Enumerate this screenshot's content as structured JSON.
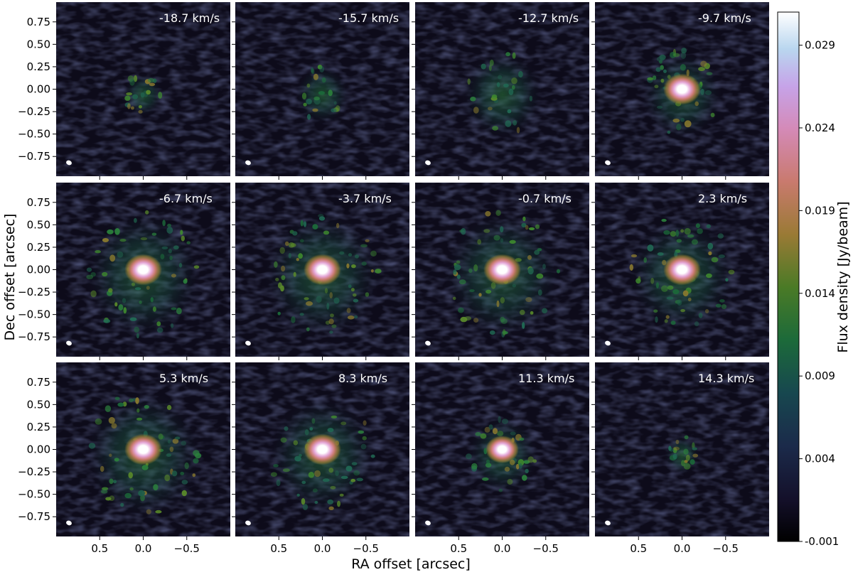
{
  "chart_data": {
    "type": "heatmap",
    "description_grid": "3x4 channel maps",
    "xlabel": "RA offset [arcsec]",
    "ylabel": "Dec offset [arcsec]",
    "colorbar_label": "Flux density [Jy/beam]",
    "x_ticks": [
      "0.5",
      "0.0",
      "−0.5"
    ],
    "y_ticks": [
      "0.75",
      "0.50",
      "0.25",
      "0.00",
      "−0.25",
      "−0.50",
      "−0.75"
    ],
    "colorbar_ticks": [
      "0.029",
      "0.024",
      "0.019",
      "0.014",
      "0.009",
      "0.004",
      "-0.001"
    ],
    "colorbar_range": [
      -0.001,
      0.031
    ],
    "xlim": [
      1.0,
      -1.0
    ],
    "ylim": [
      -0.97,
      0.97
    ],
    "colormap": "cubehelix",
    "panels": [
      {
        "velocity": "-18.7 km/s",
        "peak_intensity": 0.35,
        "extent": 0.22
      },
      {
        "velocity": "-15.7 km/s",
        "peak_intensity": 0.3,
        "extent": 0.3
      },
      {
        "velocity": "-12.7 km/s",
        "peak_intensity": 0.35,
        "extent": 0.45
      },
      {
        "velocity": "-9.7 km/s",
        "peak_intensity": 1.0,
        "extent": 0.45
      },
      {
        "velocity": "-6.7 km/s",
        "peak_intensity": 1.0,
        "extent": 0.65
      },
      {
        "velocity": "-3.7 km/s",
        "peak_intensity": 1.0,
        "extent": 0.65
      },
      {
        "velocity": "-0.7 km/s",
        "peak_intensity": 1.0,
        "extent": 0.65
      },
      {
        "velocity": "2.3 km/s",
        "peak_intensity": 1.0,
        "extent": 0.6
      },
      {
        "velocity": "5.3 km/s",
        "peak_intensity": 1.0,
        "extent": 0.65
      },
      {
        "velocity": "8.3 km/s",
        "peak_intensity": 1.0,
        "extent": 0.6
      },
      {
        "velocity": "11.3 km/s",
        "peak_intensity": 0.75,
        "extent": 0.4
      },
      {
        "velocity": "14.3 km/s",
        "peak_intensity": 0.18,
        "extent": 0.2
      }
    ],
    "beam_marker": "white ellipse (lower-left)"
  }
}
